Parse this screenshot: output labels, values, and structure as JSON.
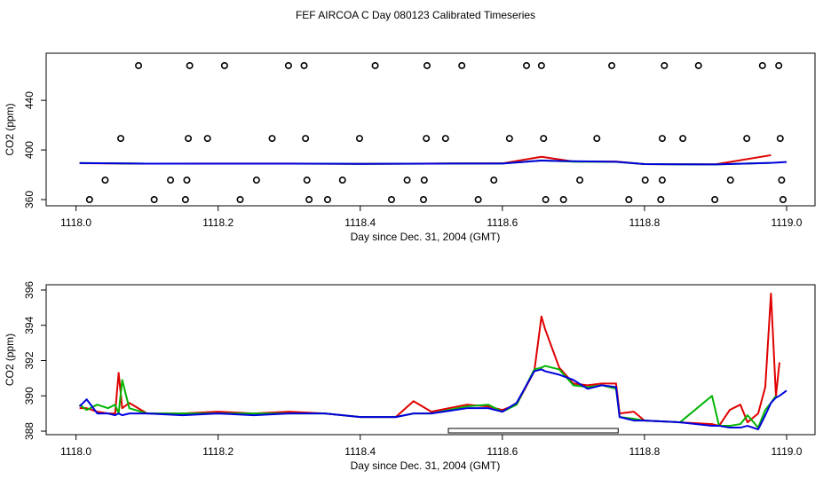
{
  "title": "FEF AIRCOA C  Day 080123  Calibrated Timeseries",
  "chart_data": [
    {
      "type": "line",
      "xlabel": "Day since Dec. 31, 2004 (GMT)",
      "ylabel": "CO2 (ppm)",
      "xlim": [
        1117.958,
        1119.04
      ],
      "ylim": [
        355,
        478
      ],
      "xticks": [
        {
          "value": 1118.0,
          "label": "1118.0"
        },
        {
          "value": 1118.2,
          "label": "1118.2"
        },
        {
          "value": 1118.4,
          "label": "1118.4"
        },
        {
          "value": 1118.6,
          "label": "1118.6"
        },
        {
          "value": 1118.8,
          "label": "1118.8"
        },
        {
          "value": 1119.0,
          "label": "1119.0"
        }
      ],
      "yticks": [
        360,
        400,
        440
      ],
      "x": [
        1118.005,
        1118.1,
        1118.2,
        1118.3,
        1118.4,
        1118.5,
        1118.6,
        1118.655,
        1118.7,
        1118.76,
        1118.8,
        1118.9,
        1118.978,
        1119.0
      ],
      "series": [
        {
          "color": "#e00000",
          "values": [
            389.3,
            389.0,
            389.1,
            389.1,
            388.8,
            389.1,
            389.2,
            394.5,
            390.7,
            390.7,
            388.6,
            388.4,
            395.8,
            null
          ]
        },
        {
          "color": "#00b400",
          "values": [
            389.5,
            389.0,
            389.0,
            389.0,
            388.8,
            389.0,
            389.1,
            391.6,
            390.6,
            390.4,
            388.6,
            388.3,
            389.6,
            null
          ]
        },
        {
          "color": "#0000e0",
          "values": [
            389.4,
            389.0,
            389.0,
            389.0,
            388.8,
            389.0,
            389.1,
            391.5,
            390.9,
            390.5,
            388.6,
            388.3,
            389.6,
            390.3
          ]
        }
      ],
      "points": {
        "x": [
          1118.088,
          1118.16,
          1118.209,
          1118.299,
          1118.321,
          1118.421,
          1118.494,
          1118.543,
          1118.634,
          1118.655,
          1118.754,
          1118.828,
          1118.876,
          1118.966,
          1118.989,
          1118.063,
          1118.158,
          1118.185,
          1118.276,
          1118.323,
          1118.399,
          1118.493,
          1118.52,
          1118.61,
          1118.658,
          1118.733,
          1118.825,
          1118.854,
          1118.944,
          1118.991,
          1118.041,
          1118.133,
          1118.156,
          1118.254,
          1118.325,
          1118.375,
          1118.466,
          1118.49,
          1118.588,
          1118.709,
          1118.801,
          1118.825,
          1118.921,
          1118.993,
          1118.019,
          1118.11,
          1118.154,
          1118.231,
          1118.328,
          1118.354,
          1118.444,
          1118.489,
          1118.566,
          1118.661,
          1118.686,
          1118.778,
          1118.823,
          1118.899,
          1118.995
        ],
        "y": [
          468,
          468,
          468,
          468,
          468,
          468,
          468,
          468,
          468,
          468,
          468,
          468,
          468,
          468,
          468,
          409.3,
          409.3,
          409.3,
          409.3,
          409.3,
          409.3,
          409.3,
          409.3,
          409.3,
          409.3,
          409.3,
          409.3,
          409.3,
          409.3,
          409.3,
          375.7,
          375.7,
          375.7,
          375.7,
          375.7,
          375.7,
          375.7,
          375.7,
          375.7,
          375.7,
          375.7,
          375.7,
          375.7,
          375.7,
          360,
          360,
          360,
          360,
          360,
          360,
          360,
          360,
          360,
          360,
          360,
          360,
          360,
          360,
          360
        ]
      }
    },
    {
      "type": "line",
      "xlabel": "Day since Dec. 31, 2004 (GMT)",
      "ylabel": "CO2 (ppm)",
      "xlim": [
        1117.958,
        1119.04
      ],
      "ylim": [
        387.8,
        396.3
      ],
      "xticks": [
        {
          "value": 1118.0,
          "label": "1118.0"
        },
        {
          "value": 1118.2,
          "label": "1118.2"
        },
        {
          "value": 1118.4,
          "label": "1118.4"
        },
        {
          "value": 1118.6,
          "label": "1118.6"
        },
        {
          "value": 1118.8,
          "label": "1118.8"
        },
        {
          "value": 1119.0,
          "label": "1119.0"
        }
      ],
      "yticks": [
        388,
        390,
        392,
        394,
        396
      ],
      "interval": [
        1118.524,
        1118.763
      ],
      "x": [
        1118.005,
        1118.015,
        1118.03,
        1118.045,
        1118.055,
        1118.06,
        1118.065,
        1118.075,
        1118.1,
        1118.15,
        1118.2,
        1118.25,
        1118.3,
        1118.35,
        1118.4,
        1118.45,
        1118.475,
        1118.5,
        1118.55,
        1118.58,
        1118.6,
        1118.62,
        1118.645,
        1118.655,
        1118.66,
        1118.68,
        1118.7,
        1118.72,
        1118.74,
        1118.76,
        1118.765,
        1118.785,
        1118.8,
        1118.85,
        1118.895,
        1118.905,
        1118.92,
        1118.935,
        1118.945,
        1118.96,
        1118.97,
        1118.978,
        1118.985,
        1118.99,
        1119.0
      ],
      "series": [
        {
          "color": "#e00000",
          "values": [
            389.3,
            389.3,
            389.1,
            389.0,
            389.0,
            391.3,
            389.3,
            389.6,
            389.0,
            389.0,
            389.1,
            389.0,
            389.1,
            389.0,
            388.8,
            388.8,
            389.7,
            389.1,
            389.5,
            389.4,
            389.2,
            389.5,
            391.4,
            394.5,
            393.8,
            391.6,
            390.7,
            390.6,
            390.7,
            390.7,
            389.0,
            389.1,
            388.6,
            388.5,
            388.4,
            388.3,
            389.2,
            389.5,
            388.5,
            389.0,
            390.5,
            395.8,
            390.0,
            391.9,
            null
          ]
        },
        {
          "color": "#00b400",
          "values": [
            389.5,
            389.2,
            389.5,
            389.3,
            389.5,
            389.0,
            390.9,
            389.3,
            389.0,
            389.0,
            389.0,
            389.0,
            389.0,
            389.0,
            388.8,
            388.8,
            389.0,
            389.0,
            389.4,
            389.5,
            389.1,
            389.5,
            391.5,
            391.6,
            391.7,
            391.5,
            390.6,
            390.5,
            390.6,
            390.4,
            388.8,
            388.7,
            388.6,
            388.5,
            390.0,
            388.3,
            388.3,
            388.4,
            388.9,
            388.2,
            389.2,
            389.6,
            390.0,
            null,
            null
          ]
        },
        {
          "color": "#0000e0",
          "values": [
            389.4,
            389.8,
            389.0,
            389.0,
            388.9,
            389.0,
            388.9,
            389.0,
            389.0,
            388.9,
            389.0,
            388.9,
            389.0,
            389.0,
            388.8,
            388.8,
            389.0,
            389.0,
            389.3,
            389.3,
            389.1,
            389.6,
            391.4,
            391.5,
            391.4,
            391.2,
            390.9,
            390.4,
            390.6,
            390.5,
            388.8,
            388.6,
            388.6,
            388.5,
            388.3,
            388.3,
            388.2,
            388.2,
            388.3,
            388.1,
            388.9,
            389.6,
            389.9,
            390.0,
            390.3
          ]
        }
      ]
    }
  ]
}
